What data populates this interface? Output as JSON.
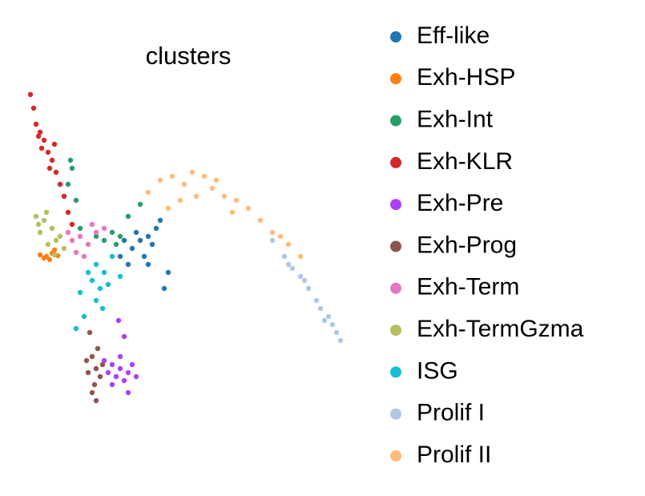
{
  "chart_data": {
    "type": "scatter",
    "title": "clusters",
    "xlim": [
      0,
      410
    ],
    "ylim": [
      0,
      400
    ],
    "series": [
      {
        "name": "Eff-like",
        "color": "#1f77b4",
        "x": [
          145,
          155,
          135,
          165,
          130,
          150,
          170,
          120,
          160,
          140,
          180,
          125,
          155,
          175
        ],
        "y": [
          210,
          215,
          200,
          225,
          180,
          190,
          235,
          190,
          205,
          220,
          170,
          210,
          180,
          150
        ]
      },
      {
        "name": "Exh-HSP",
        "color": "#ff7f0e",
        "x": [
          20,
          28,
          35,
          42,
          25,
          32,
          38
        ],
        "y": [
          192,
          190,
          194,
          191,
          188,
          186,
          198
        ]
      },
      {
        "name": "Exh-Int",
        "color": "#279e68",
        "x": [
          120,
          110,
          100,
          60,
          55,
          65,
          130,
          90,
          145,
          70,
          115,
          58
        ],
        "y": [
          215,
          220,
          210,
          300,
          280,
          260,
          240,
          215,
          255,
          225,
          205,
          310
        ]
      },
      {
        "name": "Exh-KLR",
        "color": "#d62728",
        "x": [
          8,
          12,
          15,
          20,
          25,
          30,
          22,
          35,
          40,
          45,
          32,
          50,
          55,
          60,
          38,
          18
        ],
        "y": [
          392,
          375,
          355,
          345,
          335,
          320,
          325,
          310,
          295,
          280,
          300,
          265,
          245,
          230,
          330,
          340
        ]
      },
      {
        "name": "Exh-Pre",
        "color": "#aa40fc",
        "x": [
          110,
          120,
          130,
          115,
          125,
          135,
          105,
          120,
          140,
          110,
          125,
          118,
          130,
          100
        ],
        "y": [
          55,
          50,
          45,
          40,
          35,
          55,
          45,
          65,
          40,
          30,
          90,
          110,
          20,
          60
        ]
      },
      {
        "name": "Exh-Prog",
        "color": "#8c564b",
        "x": [
          85,
          90,
          80,
          95,
          88,
          78,
          92,
          85,
          82,
          98,
          90
        ],
        "y": [
          65,
          50,
          45,
          40,
          30,
          60,
          75,
          20,
          95,
          55,
          10
        ]
      },
      {
        "name": "Exh-Term",
        "color": "#e377c2",
        "x": [
          60,
          70,
          80,
          65,
          90,
          75,
          100,
          55,
          85
        ],
        "y": [
          210,
          215,
          205,
          195,
          220,
          190,
          225,
          220,
          230
        ]
      },
      {
        "name": "Exh-TermGzma",
        "color": "#b5bd61",
        "x": [
          15,
          25,
          35,
          20,
          40,
          30,
          45,
          18,
          50,
          28,
          38
        ],
        "y": [
          240,
          235,
          225,
          220,
          210,
          205,
          215,
          230,
          200,
          245,
          192
        ]
      },
      {
        "name": "ISG",
        "color": "#17becf",
        "x": [
          90,
          100,
          85,
          95,
          105,
          80,
          90,
          70,
          65,
          110,
          120,
          98,
          75
        ],
        "y": [
          180,
          170,
          160,
          150,
          155,
          170,
          135,
          145,
          100,
          190,
          165,
          125,
          115
        ]
      },
      {
        "name": "Prolif I",
        "color": "#aec7e8",
        "x": [
          310,
          325,
          335,
          345,
          355,
          365,
          370,
          380,
          385,
          390,
          395,
          350,
          375,
          330
        ],
        "y": [
          210,
          190,
          175,
          165,
          150,
          135,
          125,
          115,
          105,
          95,
          85,
          160,
          110,
          180
        ]
      },
      {
        "name": "Prolif II",
        "color": "#ffbb78",
        "x": [
          155,
          170,
          185,
          200,
          210,
          225,
          235,
          250,
          265,
          280,
          295,
          310,
          330,
          345,
          215,
          195,
          240,
          180,
          260,
          320
        ],
        "y": [
          270,
          285,
          290,
          280,
          295,
          290,
          275,
          265,
          260,
          250,
          235,
          220,
          205,
          190,
          265,
          260,
          285,
          250,
          245,
          215
        ]
      }
    ]
  }
}
